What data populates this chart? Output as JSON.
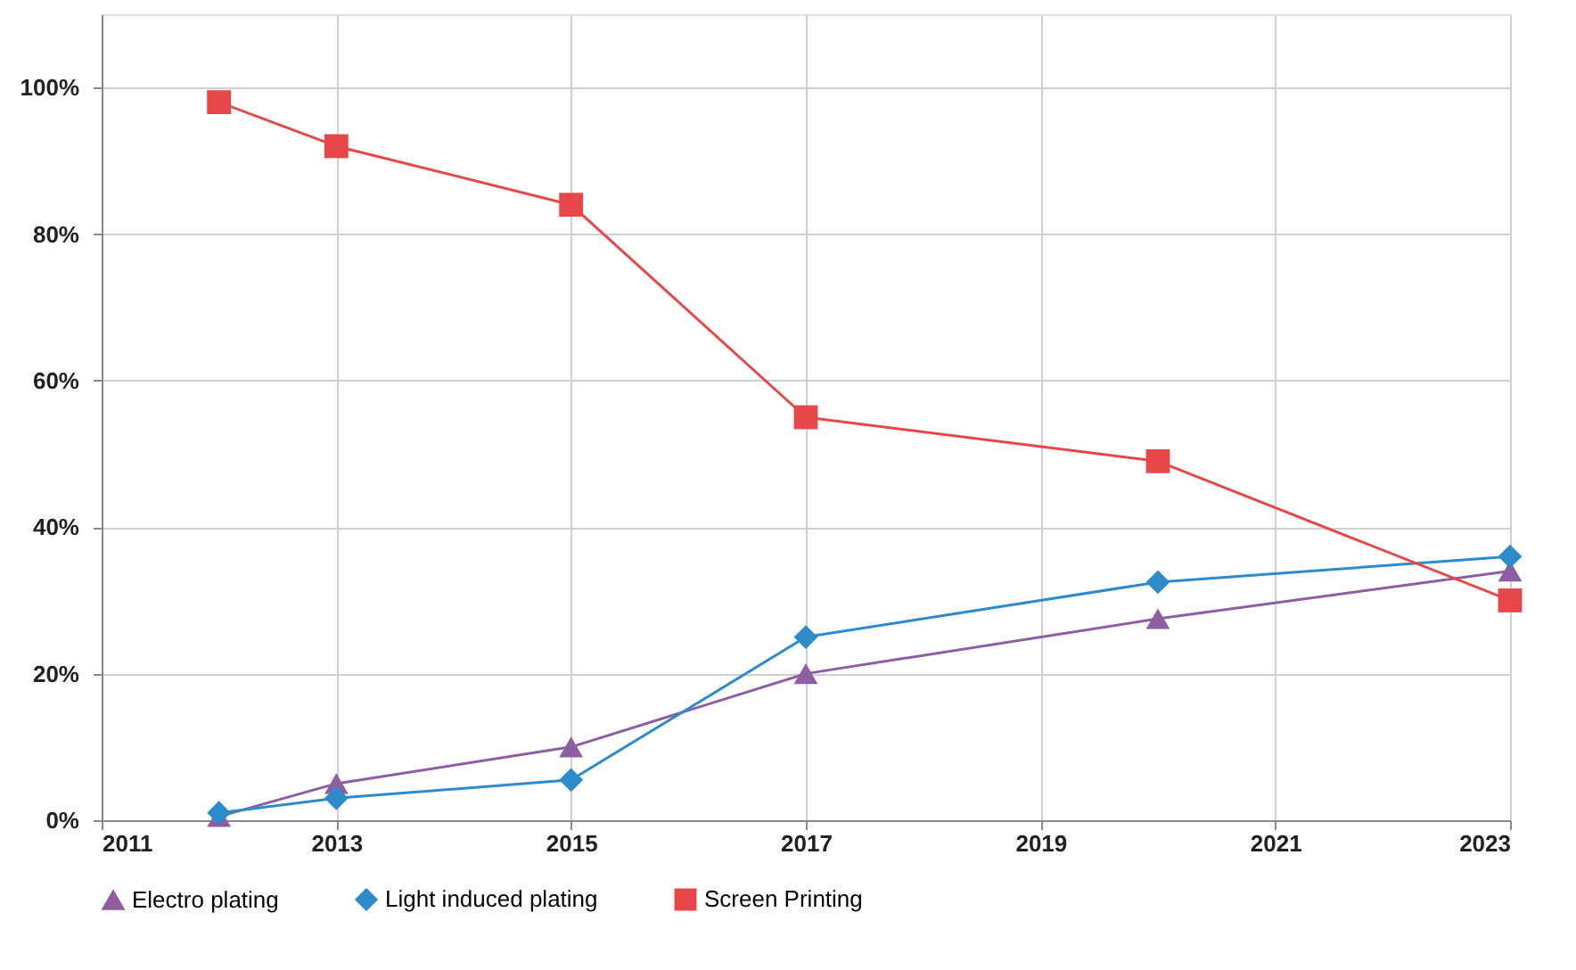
{
  "chart_data": {
    "type": "line",
    "x": [
      2012,
      2013,
      2015,
      2017,
      2020,
      2023
    ],
    "series": [
      {
        "name": "Electro plating",
        "color": "#8e5ea2",
        "marker": "triangle",
        "values": [
          0.5,
          5,
          10,
          20,
          27.5,
          34
        ]
      },
      {
        "name": "Light induced plating",
        "color": "#2e8bc9",
        "marker": "diamond",
        "values": [
          1,
          3,
          5.5,
          25,
          32.5,
          36
        ]
      },
      {
        "name": "Screen Printing",
        "color": "#e8474a",
        "marker": "square",
        "values": [
          98,
          92,
          84,
          55,
          49,
          30
        ]
      }
    ],
    "xlim": [
      2011,
      2023
    ],
    "xticks": [
      2011,
      2013,
      2015,
      2017,
      2019,
      2021,
      2023
    ],
    "ylim": [
      0,
      110
    ],
    "yticks": [
      {
        "value": 0,
        "label": "0%"
      },
      {
        "value": 20,
        "label": "20%"
      },
      {
        "value": 40,
        "label": "40%"
      },
      {
        "value": 60,
        "label": "60%"
      },
      {
        "value": 80,
        "label": "80%"
      },
      {
        "value": 100,
        "label": "100%"
      }
    ],
    "grid": true,
    "legend": "bottom",
    "line_style": "solid"
  }
}
